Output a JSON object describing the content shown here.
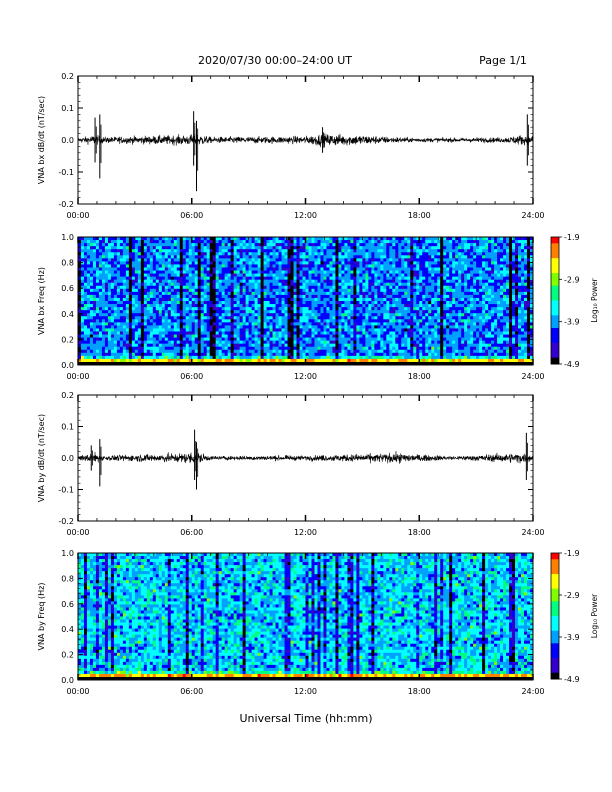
{
  "header": {
    "title": "2020/07/30  00:00–24:00 UT",
    "page": "Page 1/1"
  },
  "footer": {
    "xlabel": "Universal Time (hh:mm)"
  },
  "colors": {
    "trace": "#000000",
    "axis": "#000000",
    "background": "#ffffff"
  },
  "colorbar": {
    "label": "Log₁₀ Power",
    "ticks": [
      "-1.9",
      "-2.9",
      "-3.9",
      "-4.9"
    ],
    "range": [
      -4.9,
      -1.9
    ],
    "colormap": [
      "#000000",
      "#3300cc",
      "#0000ff",
      "#00a0ff",
      "#00ffff",
      "#00ff80",
      "#80ff00",
      "#ffff00",
      "#ff8000",
      "#ff0000"
    ]
  },
  "chart_data": [
    {
      "type": "line",
      "ylabel": "VNA bx dB/dt (nT/sec)",
      "xlim": [
        0,
        24
      ],
      "ylim": [
        -0.2,
        0.2
      ],
      "x_ticks": [
        "00:00",
        "06:00",
        "12:00",
        "18:00",
        "24:00"
      ],
      "y_ticks": [
        "0.2",
        "0.1",
        "0.0",
        "-0.1",
        "-0.2"
      ],
      "baseline": 0.0,
      "noise_segments": [
        [
          0,
          0.008
        ],
        [
          0.9,
          0.02
        ],
        [
          1.4,
          0.012
        ],
        [
          5.8,
          0.02
        ],
        [
          6.3,
          0.025
        ],
        [
          7.0,
          0.012
        ],
        [
          12.0,
          0.015
        ],
        [
          12.8,
          0.025
        ],
        [
          15.0,
          0.02
        ],
        [
          16.5,
          0.012
        ],
        [
          18.0,
          0.008
        ],
        [
          22.5,
          0.01
        ],
        [
          23.3,
          0.02
        ],
        [
          24,
          0.015
        ]
      ],
      "spikes": [
        {
          "t": 0.9,
          "max": 0.07,
          "min": -0.07
        },
        {
          "t": 1.15,
          "max": 0.08,
          "min": -0.12
        },
        {
          "t": 6.1,
          "max": 0.09,
          "min": -0.08
        },
        {
          "t": 6.25,
          "max": 0.06,
          "min": -0.16
        },
        {
          "t": 12.9,
          "max": 0.04,
          "min": -0.04
        },
        {
          "t": 23.7,
          "max": 0.08,
          "min": -0.08
        }
      ]
    },
    {
      "type": "heatmap",
      "ylabel": "VNA bx Freq (Hz)",
      "xlim": [
        0,
        24
      ],
      "ylim": [
        0,
        1.0
      ],
      "x_ticks": [
        "00:00",
        "06:00",
        "12:00",
        "18:00",
        "24:00"
      ],
      "y_ticks": [
        "1.0",
        "0.8",
        "0.6",
        "0.4",
        "0.2",
        "0.0"
      ],
      "mean_level": -3.95,
      "low_freq_peak": -2.5
    },
    {
      "type": "line",
      "ylabel": "VNA by dB/dt (nT/sec)",
      "xlim": [
        0,
        24
      ],
      "ylim": [
        -0.2,
        0.2
      ],
      "x_ticks": [
        "00:00",
        "06:00",
        "12:00",
        "18:00",
        "24:00"
      ],
      "y_ticks": [
        "0.2",
        "0.1",
        "0.0",
        "-0.1",
        "-0.2"
      ],
      "baseline": 0.0,
      "noise_segments": [
        [
          0,
          0.008
        ],
        [
          0.9,
          0.02
        ],
        [
          1.4,
          0.01
        ],
        [
          5.8,
          0.02
        ],
        [
          6.3,
          0.025
        ],
        [
          7.0,
          0.008
        ],
        [
          12.0,
          0.01
        ],
        [
          14.5,
          0.015
        ],
        [
          17.0,
          0.02
        ],
        [
          18.3,
          0.012
        ],
        [
          20.0,
          0.008
        ],
        [
          23.3,
          0.02
        ],
        [
          24,
          0.012
        ]
      ],
      "spikes": [
        {
          "t": 0.7,
          "max": 0.04,
          "min": -0.04
        },
        {
          "t": 1.15,
          "max": 0.06,
          "min": -0.09
        },
        {
          "t": 6.15,
          "max": 0.09,
          "min": -0.07
        },
        {
          "t": 6.25,
          "max": 0.05,
          "min": -0.1
        },
        {
          "t": 23.65,
          "max": 0.08,
          "min": -0.07
        }
      ]
    },
    {
      "type": "heatmap",
      "ylabel": "VNA by Freq (Hz)",
      "xlim": [
        0,
        24
      ],
      "ylim": [
        0,
        1.0
      ],
      "x_ticks": [
        "00:00",
        "06:00",
        "12:00",
        "18:00",
        "24:00"
      ],
      "y_ticks": [
        "1.0",
        "0.8",
        "0.6",
        "0.4",
        "0.2",
        "0.0"
      ],
      "mean_level": -3.7,
      "low_freq_peak": -2.4
    }
  ]
}
